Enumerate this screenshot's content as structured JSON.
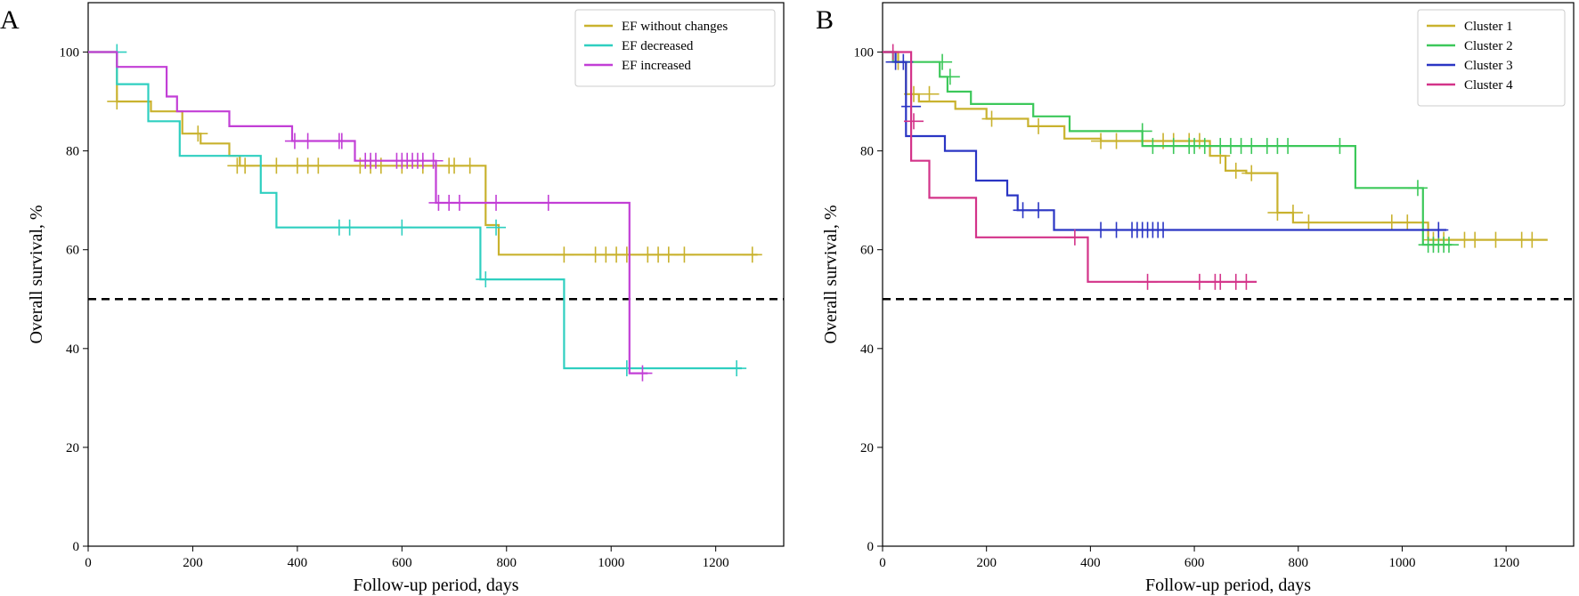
{
  "chart_data": [
    {
      "type": "line",
      "subtype": "kaplan-meier",
      "panel_label": "A",
      "xlabel": "Follow-up period, days",
      "ylabel": "Overall survival, %",
      "xlim": [
        0,
        1330
      ],
      "ylim": [
        0,
        110
      ],
      "xticks": [
        "0",
        "200",
        "400",
        "600",
        "800",
        "1000",
        "1200"
      ],
      "yticks": [
        "0",
        "20",
        "40",
        "60",
        "80",
        "100"
      ],
      "reference_line": {
        "y": 50,
        "style": "dashed",
        "color": "#000000"
      },
      "legend_position": "top-right",
      "series": [
        {
          "name": "EF without changes",
          "color": "#c9b22e",
          "steps": [
            [
              0,
              100
            ],
            [
              55,
              100
            ],
            [
              55,
              90
            ],
            [
              120,
              90
            ],
            [
              120,
              88
            ],
            [
              180,
              88
            ],
            [
              180,
              83.5
            ],
            [
              215,
              83.5
            ],
            [
              215,
              81.5
            ],
            [
              270,
              81.5
            ],
            [
              270,
              79
            ],
            [
              290,
              79
            ],
            [
              290,
              77
            ],
            [
              760,
              77
            ],
            [
              760,
              65
            ],
            [
              785,
              65
            ],
            [
              785,
              59
            ],
            [
              1280,
              59
            ]
          ],
          "censored": [
            [
              55,
              90
            ],
            [
              210,
              83.5
            ],
            [
              285,
              77
            ],
            [
              300,
              77
            ],
            [
              360,
              77
            ],
            [
              400,
              77
            ],
            [
              420,
              77
            ],
            [
              440,
              77
            ],
            [
              520,
              77
            ],
            [
              540,
              77
            ],
            [
              560,
              77
            ],
            [
              600,
              77
            ],
            [
              640,
              77
            ],
            [
              690,
              77
            ],
            [
              700,
              77
            ],
            [
              730,
              77
            ],
            [
              910,
              59
            ],
            [
              970,
              59
            ],
            [
              990,
              59
            ],
            [
              1010,
              59
            ],
            [
              1030,
              59
            ],
            [
              1070,
              59
            ],
            [
              1090,
              59
            ],
            [
              1110,
              59
            ],
            [
              1140,
              59
            ],
            [
              1270,
              59
            ]
          ]
        },
        {
          "name": "EF decreased",
          "color": "#2fcfc0",
          "steps": [
            [
              0,
              100
            ],
            [
              55,
              100
            ],
            [
              55,
              93.5
            ],
            [
              115,
              93.5
            ],
            [
              115,
              86
            ],
            [
              175,
              86
            ],
            [
              175,
              79
            ],
            [
              330,
              79
            ],
            [
              330,
              71.5
            ],
            [
              360,
              71.5
            ],
            [
              360,
              64.5
            ],
            [
              750,
              64.5
            ],
            [
              750,
              54
            ],
            [
              910,
              54
            ],
            [
              910,
              36
            ],
            [
              1250,
              36
            ]
          ],
          "censored": [
            [
              55,
              100
            ],
            [
              480,
              64.5
            ],
            [
              500,
              64.5
            ],
            [
              600,
              64.5
            ],
            [
              760,
              54
            ],
            [
              780,
              64.5
            ],
            [
              1030,
              36
            ],
            [
              1240,
              36
            ]
          ]
        },
        {
          "name": "EF increased",
          "color": "#c23fd6",
          "steps": [
            [
              0,
              100
            ],
            [
              55,
              100
            ],
            [
              55,
              97
            ],
            [
              150,
              97
            ],
            [
              150,
              91
            ],
            [
              170,
              91
            ],
            [
              170,
              88
            ],
            [
              270,
              88
            ],
            [
              270,
              85
            ],
            [
              390,
              85
            ],
            [
              390,
              82
            ],
            [
              510,
              82
            ],
            [
              510,
              78
            ],
            [
              665,
              78
            ],
            [
              665,
              69.5
            ],
            [
              1035,
              69.5
            ],
            [
              1035,
              35
            ],
            [
              1070,
              35
            ]
          ],
          "censored": [
            [
              395,
              82
            ],
            [
              420,
              82
            ],
            [
              480,
              82
            ],
            [
              485,
              82
            ],
            [
              530,
              78
            ],
            [
              540,
              78
            ],
            [
              550,
              78
            ],
            [
              590,
              78
            ],
            [
              600,
              78
            ],
            [
              610,
              78
            ],
            [
              620,
              78
            ],
            [
              630,
              78
            ],
            [
              640,
              78
            ],
            [
              660,
              78
            ],
            [
              670,
              69.5
            ],
            [
              690,
              69.5
            ],
            [
              710,
              69.5
            ],
            [
              780,
              69.5
            ],
            [
              880,
              69.5
            ],
            [
              1060,
              35
            ]
          ]
        }
      ]
    },
    {
      "type": "line",
      "subtype": "kaplan-meier",
      "panel_label": "B",
      "xlabel": "Follow-up period, days",
      "ylabel": "Overall survival, %",
      "xlim": [
        0,
        1330
      ],
      "ylim": [
        0,
        110
      ],
      "xticks": [
        "0",
        "200",
        "400",
        "600",
        "800",
        "1000",
        "1200"
      ],
      "yticks": [
        "0",
        "20",
        "40",
        "60",
        "80",
        "100"
      ],
      "reference_line": {
        "y": 50,
        "style": "dashed",
        "color": "#000000"
      },
      "legend_position": "top-right",
      "series": [
        {
          "name": "Cluster 1",
          "color": "#c9b22e",
          "steps": [
            [
              0,
              100
            ],
            [
              30,
              100
            ],
            [
              30,
              98
            ],
            [
              45,
              98
            ],
            [
              45,
              91.5
            ],
            [
              70,
              91.5
            ],
            [
              70,
              90
            ],
            [
              140,
              90
            ],
            [
              140,
              88.5
            ],
            [
              200,
              88.5
            ],
            [
              200,
              86.5
            ],
            [
              280,
              86.5
            ],
            [
              280,
              85
            ],
            [
              350,
              85
            ],
            [
              350,
              82.5
            ],
            [
              420,
              82.5
            ],
            [
              420,
              82
            ],
            [
              630,
              82
            ],
            [
              630,
              79
            ],
            [
              660,
              79
            ],
            [
              660,
              76
            ],
            [
              700,
              76
            ],
            [
              700,
              75.5
            ],
            [
              760,
              75.5
            ],
            [
              760,
              67.5
            ],
            [
              790,
              67.5
            ],
            [
              790,
              65.5
            ],
            [
              1050,
              65.5
            ],
            [
              1050,
              62
            ],
            [
              1280,
              62
            ]
          ],
          "censored": [
            [
              30,
              98
            ],
            [
              60,
              91.5
            ],
            [
              90,
              91.5
            ],
            [
              210,
              86.5
            ],
            [
              300,
              85
            ],
            [
              420,
              82
            ],
            [
              450,
              82
            ],
            [
              540,
              82
            ],
            [
              560,
              82
            ],
            [
              590,
              82
            ],
            [
              610,
              82
            ],
            [
              650,
              79
            ],
            [
              680,
              76
            ],
            [
              710,
              75.5
            ],
            [
              760,
              67.5
            ],
            [
              790,
              67.5
            ],
            [
              820,
              65.5
            ],
            [
              980,
              65.5
            ],
            [
              1010,
              65.5
            ],
            [
              1060,
              62
            ],
            [
              1080,
              62
            ],
            [
              1120,
              62
            ],
            [
              1140,
              62
            ],
            [
              1180,
              62
            ],
            [
              1230,
              62
            ],
            [
              1250,
              62
            ]
          ]
        },
        {
          "name": "Cluster 2",
          "color": "#3cc85a",
          "steps": [
            [
              0,
              100
            ],
            [
              20,
              100
            ],
            [
              20,
              98
            ],
            [
              110,
              98
            ],
            [
              110,
              95
            ],
            [
              125,
              95
            ],
            [
              125,
              92
            ],
            [
              170,
              92
            ],
            [
              170,
              89.5
            ],
            [
              290,
              89.5
            ],
            [
              290,
              87
            ],
            [
              360,
              87
            ],
            [
              360,
              84
            ],
            [
              500,
              84
            ],
            [
              500,
              81
            ],
            [
              910,
              81
            ],
            [
              910,
              72.5
            ],
            [
              1040,
              72.5
            ],
            [
              1040,
              61
            ],
            [
              1095,
              61
            ]
          ],
          "censored": [
            [
              115,
              98
            ],
            [
              130,
              95
            ],
            [
              500,
              84
            ],
            [
              520,
              81
            ],
            [
              560,
              81
            ],
            [
              590,
              81
            ],
            [
              600,
              81
            ],
            [
              620,
              81
            ],
            [
              650,
              81
            ],
            [
              670,
              81
            ],
            [
              690,
              81
            ],
            [
              710,
              81
            ],
            [
              740,
              81
            ],
            [
              760,
              81
            ],
            [
              780,
              81
            ],
            [
              880,
              81
            ],
            [
              1030,
              72.5
            ],
            [
              1050,
              61
            ],
            [
              1060,
              61
            ],
            [
              1070,
              61
            ],
            [
              1080,
              61
            ],
            [
              1090,
              61
            ]
          ]
        },
        {
          "name": "Cluster 3",
          "color": "#2a35c4",
          "steps": [
            [
              0,
              100
            ],
            [
              25,
              100
            ],
            [
              25,
              98
            ],
            [
              45,
              98
            ],
            [
              45,
              83
            ],
            [
              120,
              83
            ],
            [
              120,
              80
            ],
            [
              180,
              80
            ],
            [
              180,
              74
            ],
            [
              240,
              74
            ],
            [
              240,
              71
            ],
            [
              260,
              71
            ],
            [
              260,
              68
            ],
            [
              330,
              68
            ],
            [
              330,
              64
            ],
            [
              1085,
              64
            ]
          ],
          "censored": [
            [
              25,
              98
            ],
            [
              40,
              98
            ],
            [
              55,
              89
            ],
            [
              270,
              68
            ],
            [
              300,
              68
            ],
            [
              420,
              64
            ],
            [
              450,
              64
            ],
            [
              480,
              64
            ],
            [
              490,
              64
            ],
            [
              500,
              64
            ],
            [
              510,
              64
            ],
            [
              520,
              64
            ],
            [
              530,
              64
            ],
            [
              540,
              64
            ],
            [
              1070,
              64
            ]
          ]
        },
        {
          "name": "Cluster 4",
          "color": "#d33389",
          "steps": [
            [
              0,
              100
            ],
            [
              20,
              100
            ],
            [
              20,
              100
            ],
            [
              55,
              100
            ],
            [
              55,
              78
            ],
            [
              90,
              78
            ],
            [
              90,
              70.5
            ],
            [
              180,
              70.5
            ],
            [
              180,
              62.5
            ],
            [
              395,
              62.5
            ],
            [
              395,
              53.5
            ],
            [
              720,
              53.5
            ]
          ],
          "censored": [
            [
              20,
              100
            ],
            [
              60,
              86
            ],
            [
              370,
              62.5
            ],
            [
              510,
              53.5
            ],
            [
              610,
              53.5
            ],
            [
              640,
              53.5
            ],
            [
              650,
              53.5
            ],
            [
              680,
              53.5
            ],
            [
              700,
              53.5
            ]
          ]
        }
      ]
    }
  ]
}
